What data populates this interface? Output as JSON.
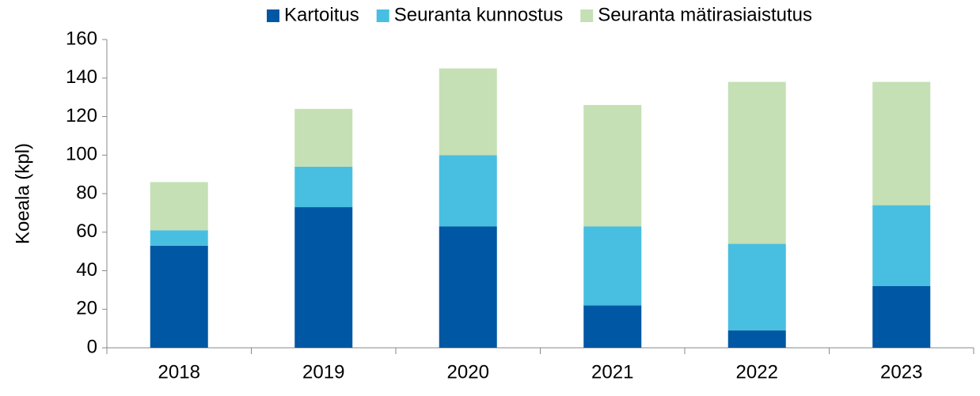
{
  "chart_data": {
    "type": "stacked_bar",
    "y_label": "Koeala (kpl)",
    "categories": [
      "2018",
      "2019",
      "2020",
      "2021",
      "2022",
      "2023"
    ],
    "series": [
      {
        "name": "Kartoitus",
        "color": "#0057a3",
        "values": [
          53,
          73,
          63,
          22,
          9,
          32
        ]
      },
      {
        "name": "Seuranta kunnostus",
        "color": "#48bfe0",
        "values": [
          8,
          21,
          37,
          41,
          45,
          42
        ]
      },
      {
        "name": "Seuranta mätirasiaistutus",
        "color": "#c5e0b4",
        "values": [
          25,
          30,
          45,
          63,
          84,
          64
        ]
      }
    ],
    "ylim": [
      0,
      160
    ],
    "yticks": [
      0,
      20,
      40,
      60,
      80,
      100,
      120,
      140,
      160
    ],
    "legend": "top"
  }
}
